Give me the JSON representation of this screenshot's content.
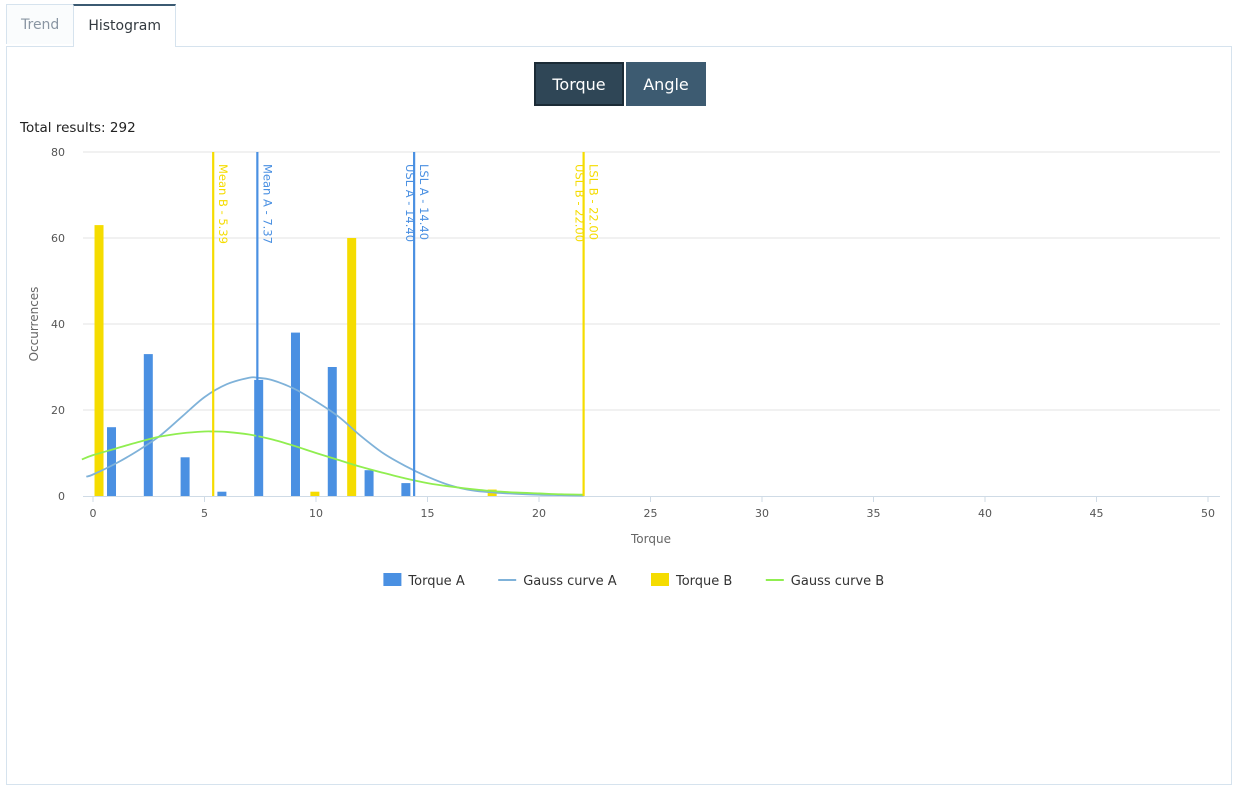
{
  "tabs": [
    {
      "label": "Trend",
      "active": false
    },
    {
      "label": "Histogram",
      "active": true
    }
  ],
  "measure_buttons": {
    "torque_label": "Torque",
    "angle_label": "Angle",
    "selected": "Torque"
  },
  "summary": {
    "total_results": "Total results: 292"
  },
  "colors": {
    "torque_a": "#4a90e2",
    "gauss_a": "#7fb2d9",
    "torque_b": "#f5dc00",
    "gauss_b": "#90ee50",
    "button_active": "#2f4656",
    "button_inactive": "#3d5b71"
  },
  "chart_data": {
    "type": "bar",
    "xlabel": "Torque",
    "ylabel": "Occurrences",
    "xlim": [
      0,
      50
    ],
    "ylim": [
      0,
      80
    ],
    "x_ticks": [
      0,
      5,
      10,
      15,
      20,
      25,
      30,
      35,
      40,
      45,
      50
    ],
    "y_ticks": [
      0,
      20,
      40,
      60,
      80
    ],
    "grid": true,
    "legend_position": "bottom-center",
    "series": [
      {
        "name": "Torque A",
        "kind": "bar",
        "color": "#4a90e2",
        "points": [
          {
            "x": 0.83,
            "y": 16
          },
          {
            "x": 2.48,
            "y": 33
          },
          {
            "x": 4.13,
            "y": 9
          },
          {
            "x": 5.78,
            "y": 1
          },
          {
            "x": 7.43,
            "y": 27
          },
          {
            "x": 9.08,
            "y": 38
          },
          {
            "x": 10.73,
            "y": 30
          },
          {
            "x": 12.38,
            "y": 6
          },
          {
            "x": 14.03,
            "y": 3
          }
        ]
      },
      {
        "name": "Gauss curve A",
        "kind": "line",
        "color": "#7fb2d9",
        "points": [
          {
            "x": -0.3,
            "y": 4.5
          },
          {
            "x": 0,
            "y": 5
          },
          {
            "x": 1,
            "y": 7.5
          },
          {
            "x": 2,
            "y": 10.5
          },
          {
            "x": 3,
            "y": 14
          },
          {
            "x": 4,
            "y": 18.5
          },
          {
            "x": 5,
            "y": 23
          },
          {
            "x": 6,
            "y": 26
          },
          {
            "x": 7,
            "y": 27.5
          },
          {
            "x": 7.37,
            "y": 27.5
          },
          {
            "x": 8,
            "y": 27
          },
          {
            "x": 9,
            "y": 25
          },
          {
            "x": 10,
            "y": 22
          },
          {
            "x": 11,
            "y": 18.5
          },
          {
            "x": 12,
            "y": 14
          },
          {
            "x": 13,
            "y": 10
          },
          {
            "x": 14,
            "y": 7
          },
          {
            "x": 15,
            "y": 4.5
          },
          {
            "x": 16,
            "y": 2.5
          },
          {
            "x": 17,
            "y": 1.3
          },
          {
            "x": 18,
            "y": 0.8
          },
          {
            "x": 19,
            "y": 0.5
          },
          {
            "x": 20,
            "y": 0.3
          },
          {
            "x": 21,
            "y": 0.2
          },
          {
            "x": 22,
            "y": 0.1
          }
        ]
      },
      {
        "name": "Torque B",
        "kind": "bar",
        "color": "#f5dc00",
        "points": [
          {
            "x": 0.27,
            "y": 63
          },
          {
            "x": 9.95,
            "y": 1
          },
          {
            "x": 11.6,
            "y": 60
          },
          {
            "x": 17.9,
            "y": 1.5
          }
        ]
      },
      {
        "name": "Gauss curve B",
        "kind": "line",
        "color": "#90ee50",
        "points": [
          {
            "x": -0.5,
            "y": 8.5
          },
          {
            "x": 0,
            "y": 9.5
          },
          {
            "x": 1,
            "y": 11
          },
          {
            "x": 2,
            "y": 12.5
          },
          {
            "x": 3,
            "y": 13.8
          },
          {
            "x": 4,
            "y": 14.6
          },
          {
            "x": 5,
            "y": 15
          },
          {
            "x": 5.39,
            "y": 15
          },
          {
            "x": 6,
            "y": 14.9
          },
          {
            "x": 7,
            "y": 14.3
          },
          {
            "x": 8,
            "y": 13.2
          },
          {
            "x": 9,
            "y": 11.7
          },
          {
            "x": 10,
            "y": 10
          },
          {
            "x": 11,
            "y": 8.4
          },
          {
            "x": 12,
            "y": 6.8
          },
          {
            "x": 13,
            "y": 5.4
          },
          {
            "x": 14,
            "y": 4.1
          },
          {
            "x": 15,
            "y": 3
          },
          {
            "x": 16,
            "y": 2.2
          },
          {
            "x": 17,
            "y": 1.6
          },
          {
            "x": 18,
            "y": 1.1
          },
          {
            "x": 19,
            "y": 0.8
          },
          {
            "x": 20,
            "y": 0.6
          },
          {
            "x": 21,
            "y": 0.4
          },
          {
            "x": 22,
            "y": 0.3
          }
        ]
      }
    ],
    "plot_lines": [
      {
        "value": 5.39,
        "color": "#f5dc00",
        "labels": [
          "Mean B - 5.39"
        ]
      },
      {
        "value": 7.37,
        "color": "#4a90e2",
        "labels": [
          "Mean A - 7.37"
        ]
      },
      {
        "value": 14.4,
        "color": "#4a90e2",
        "labels": [
          "USL A - 14.40",
          "LSL A - 14.40"
        ]
      },
      {
        "value": 22.0,
        "color": "#f5dc00",
        "labels": [
          "USL B - 22.00",
          "LSL B - 22.00"
        ]
      }
    ]
  }
}
